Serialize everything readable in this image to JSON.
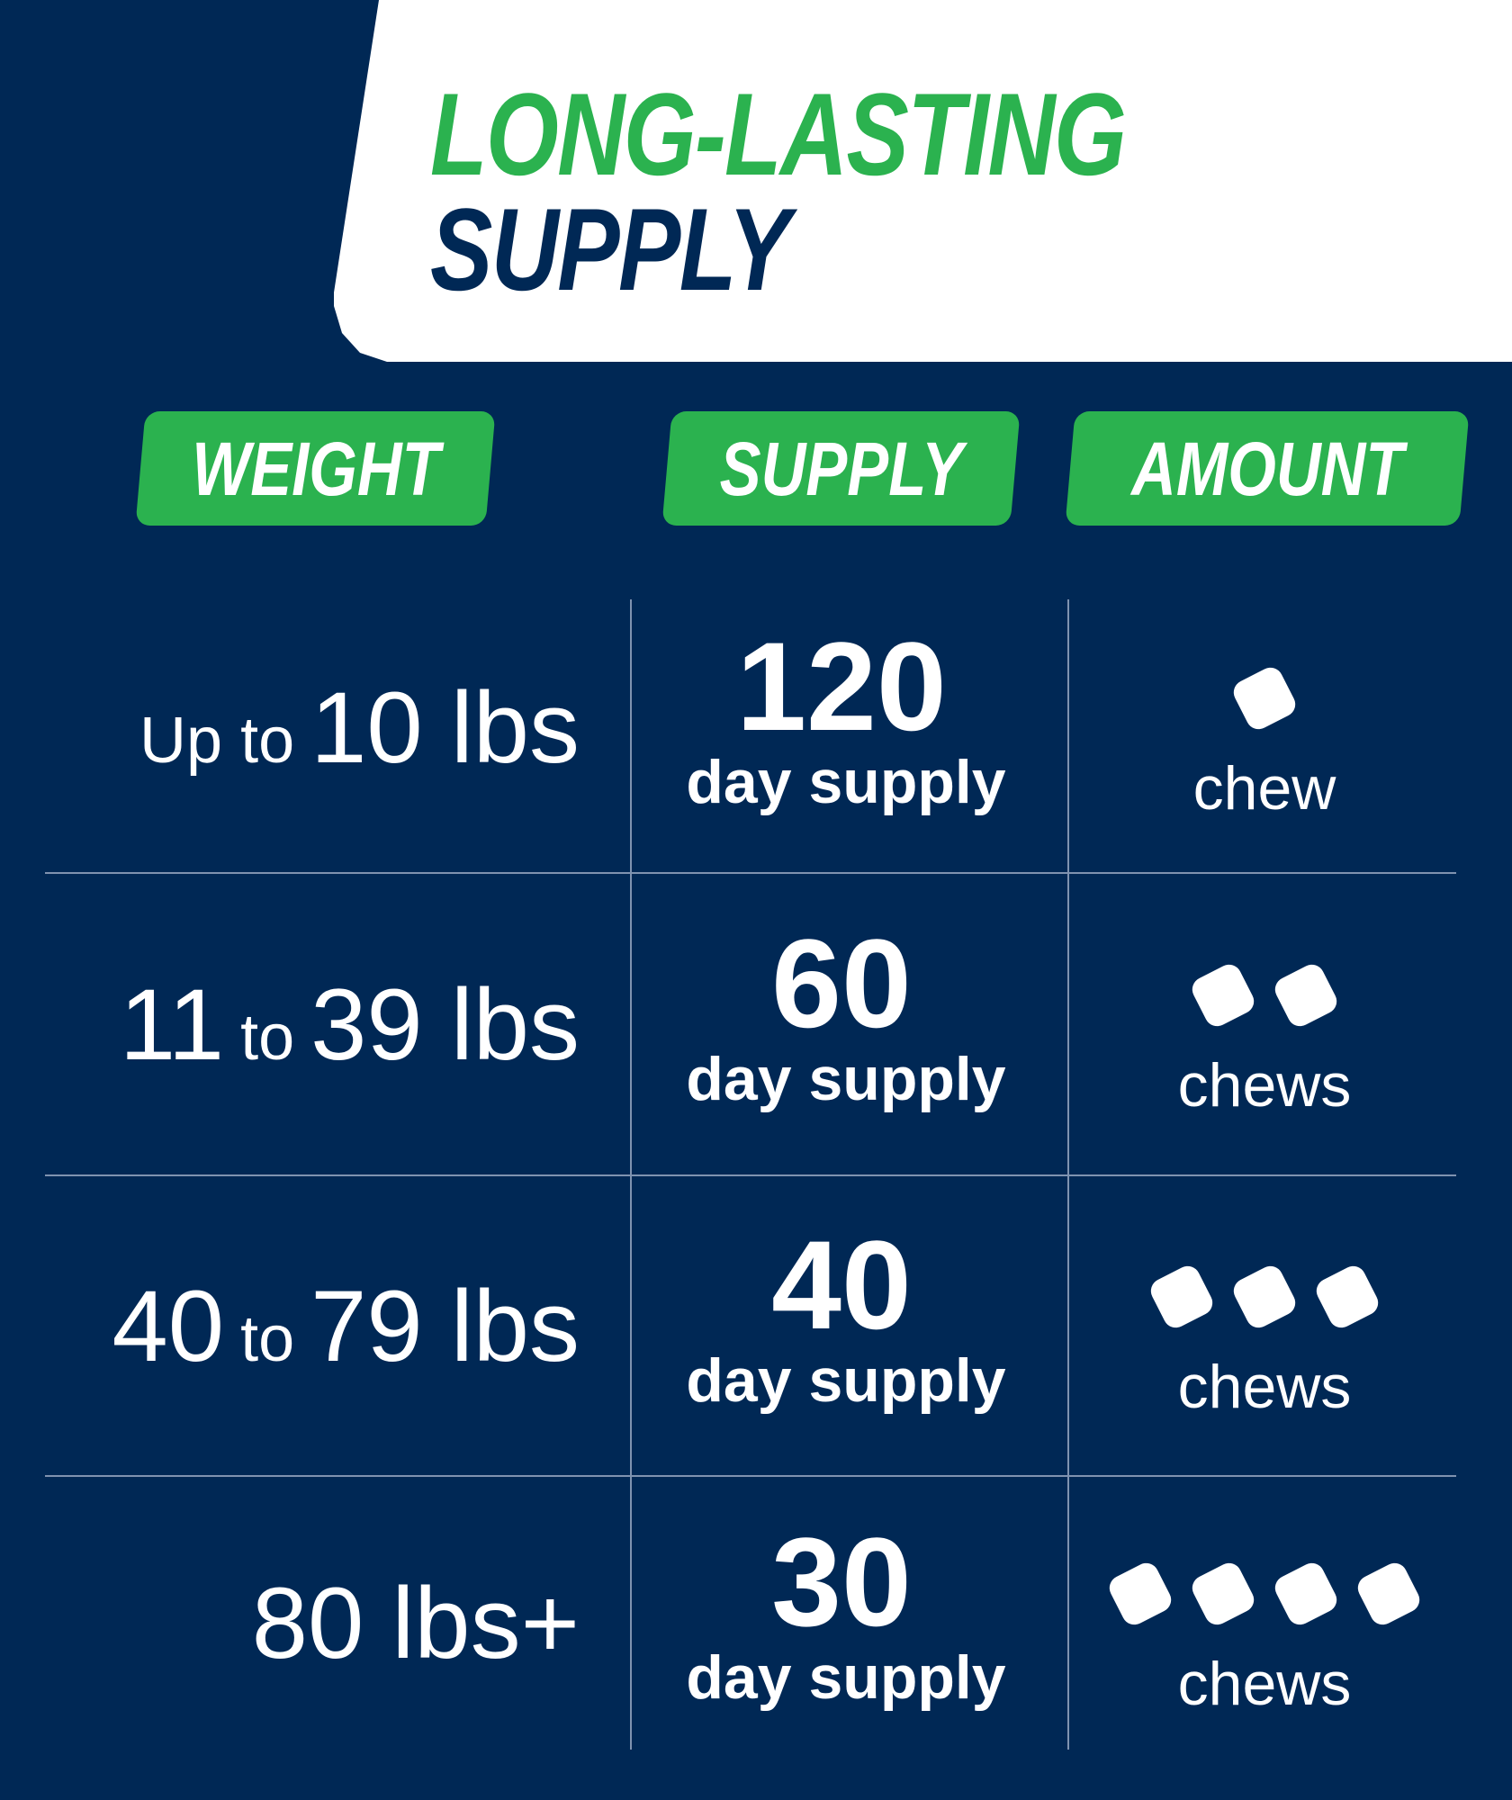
{
  "title": {
    "line1": "LONG-LASTING",
    "line2": "SUPPLY"
  },
  "headers": {
    "weight": "WEIGHT",
    "supply": "SUPPLY",
    "amount": "AMOUNT"
  },
  "colors": {
    "navy": "#002855",
    "green": "#2bb24f",
    "white": "#ffffff"
  },
  "rows": [
    {
      "weight": [
        {
          "text": "Up to",
          "size": "small"
        },
        {
          "text": "10 lbs",
          "size": "big"
        }
      ],
      "supply_number": "120",
      "supply_label": "day supply",
      "chew_count": 1,
      "chew_label": "chew"
    },
    {
      "weight": [
        {
          "text": "11",
          "size": "big"
        },
        {
          "text": "to",
          "size": "small"
        },
        {
          "text": "39 lbs",
          "size": "big"
        }
      ],
      "supply_number": "60",
      "supply_label": "day supply",
      "chew_count": 2,
      "chew_label": "chews"
    },
    {
      "weight": [
        {
          "text": "40",
          "size": "big"
        },
        {
          "text": "to",
          "size": "small"
        },
        {
          "text": "79 lbs",
          "size": "big"
        }
      ],
      "supply_number": "40",
      "supply_label": "day supply",
      "chew_count": 3,
      "chew_label": "chews"
    },
    {
      "weight": [
        {
          "text": "80 lbs+",
          "size": "big"
        }
      ],
      "supply_number": "30",
      "supply_label": "day supply",
      "chew_count": 4,
      "chew_label": "chews"
    }
  ],
  "icons": {
    "chew": "chew-icon"
  }
}
